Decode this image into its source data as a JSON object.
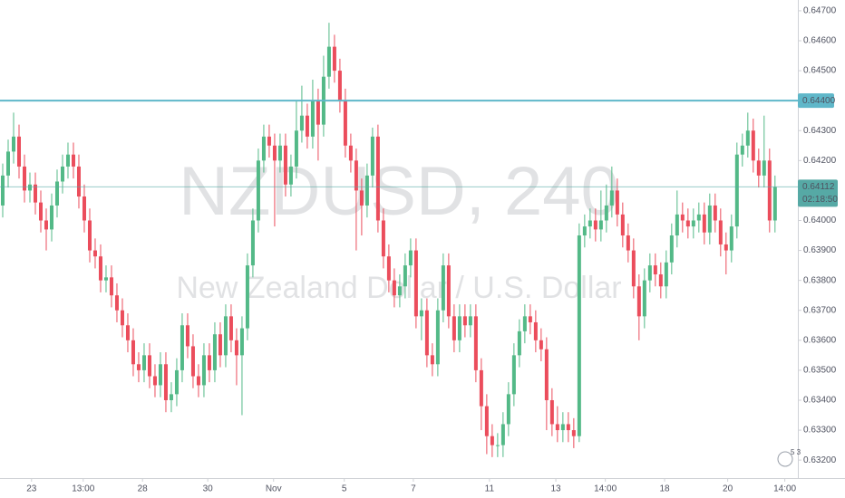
{
  "chart_data": {
    "type": "candlestick",
    "watermark_symbol": "NZDUSD, 240",
    "watermark_name": "New Zealand Dollar / U.S. Dollar",
    "up_color": "#53b987",
    "down_color": "#eb4d5c",
    "grid": false,
    "open": [
      0.6405,
      0.6415,
      0.6423,
      0.6428,
      0.6418,
      0.641,
      0.6412,
      0.6406,
      0.64,
      0.6397,
      0.6405,
      0.6413,
      0.6418,
      0.6422,
      0.6418,
      0.6408,
      0.64,
      0.639,
      0.6388,
      0.638,
      0.6381,
      0.6375,
      0.637,
      0.6365,
      0.636,
      0.6352,
      0.635,
      0.6355,
      0.6348,
      0.6345,
      0.6352,
      0.634,
      0.6342,
      0.635,
      0.6365,
      0.6358,
      0.6348,
      0.6345,
      0.6355,
      0.635,
      0.6362,
      0.6355,
      0.6368,
      0.636,
      0.6355,
      0.6364,
      0.6385,
      0.64,
      0.642,
      0.6428,
      0.6425,
      0.642,
      0.6425,
      0.6412,
      0.6418,
      0.643,
      0.6435,
      0.6428,
      0.644,
      0.6432,
      0.6448,
      0.6458,
      0.645,
      0.644,
      0.6425,
      0.642,
      0.641,
      0.6405,
      0.6415,
      0.6428,
      0.64,
      0.6388,
      0.638,
      0.6375,
      0.6378,
      0.6385,
      0.639,
      0.6368,
      0.637,
      0.6355,
      0.6352,
      0.637,
      0.6385,
      0.6368,
      0.636,
      0.6368,
      0.6365,
      0.6368,
      0.635,
      0.6338,
      0.6328,
      0.6325,
      0.6325,
      0.6332,
      0.6342,
      0.6355,
      0.6363,
      0.6368,
      0.6366,
      0.636,
      0.6357,
      0.634,
      0.6332,
      0.633,
      0.6332,
      0.633,
      0.6328,
      0.6395,
      0.6398,
      0.64,
      0.6397,
      0.64,
      0.6405,
      0.641,
      0.6402,
      0.6395,
      0.639,
      0.6378,
      0.6368,
      0.638,
      0.6385,
      0.6382,
      0.6378,
      0.6386,
      0.6395,
      0.6402,
      0.64,
      0.6398,
      0.64,
      0.6402,
      0.6396,
      0.6405,
      0.64,
      0.6392,
      0.639,
      0.6398,
      0.6422,
      0.6425,
      0.643,
      0.642,
      0.6415,
      0.642,
      0.64
    ],
    "high": [
      0.6419,
      0.6427,
      0.6436,
      0.6432,
      0.6422,
      0.6416,
      0.6416,
      0.641,
      0.6404,
      0.6409,
      0.6417,
      0.6422,
      0.6426,
      0.6426,
      0.6422,
      0.6412,
      0.6404,
      0.6394,
      0.6392,
      0.6385,
      0.6385,
      0.6379,
      0.6374,
      0.6369,
      0.6364,
      0.6356,
      0.6359,
      0.6359,
      0.6352,
      0.6356,
      0.6356,
      0.6346,
      0.6354,
      0.6369,
      0.6369,
      0.6362,
      0.6352,
      0.6359,
      0.6359,
      0.6366,
      0.6366,
      0.6372,
      0.6372,
      0.6364,
      0.6368,
      0.6389,
      0.6404,
      0.6424,
      0.6432,
      0.6432,
      0.6429,
      0.6429,
      0.6429,
      0.6422,
      0.644,
      0.6445,
      0.6439,
      0.6447,
      0.6444,
      0.6455,
      0.6466,
      0.6462,
      0.6454,
      0.6444,
      0.6429,
      0.6424,
      0.6414,
      0.6419,
      0.6431,
      0.6432,
      0.6404,
      0.6392,
      0.6384,
      0.6382,
      0.6389,
      0.6394,
      0.6394,
      0.6374,
      0.6374,
      0.6359,
      0.6374,
      0.6389,
      0.6389,
      0.6372,
      0.6372,
      0.6372,
      0.6372,
      0.6372,
      0.6354,
      0.6342,
      0.6332,
      0.6329,
      0.6336,
      0.6346,
      0.6359,
      0.6367,
      0.6372,
      0.6372,
      0.637,
      0.6364,
      0.6361,
      0.6344,
      0.6338,
      0.6336,
      0.6336,
      0.6334,
      0.6399,
      0.6402,
      0.6404,
      0.6404,
      0.641,
      0.6412,
      0.6418,
      0.6414,
      0.6406,
      0.6399,
      0.6394,
      0.6382,
      0.6384,
      0.6389,
      0.6389,
      0.6386,
      0.639,
      0.6399,
      0.641,
      0.6406,
      0.6404,
      0.6404,
      0.6406,
      0.6406,
      0.6409,
      0.6409,
      0.6404,
      0.6396,
      0.6402,
      0.6426,
      0.6429,
      0.6436,
      0.6434,
      0.6424,
      0.6435,
      0.6424,
      0.6415
    ],
    "low": [
      0.6401,
      0.6411,
      0.6419,
      0.6414,
      0.6406,
      0.6406,
      0.6402,
      0.6396,
      0.639,
      0.6393,
      0.6401,
      0.6409,
      0.6414,
      0.6414,
      0.6404,
      0.6396,
      0.6386,
      0.6384,
      0.6376,
      0.6376,
      0.6371,
      0.6366,
      0.6361,
      0.6356,
      0.6348,
      0.6346,
      0.6346,
      0.6344,
      0.6341,
      0.6341,
      0.6336,
      0.6336,
      0.6338,
      0.6346,
      0.6354,
      0.6344,
      0.6341,
      0.6341,
      0.6346,
      0.6346,
      0.6351,
      0.6351,
      0.6356,
      0.6345,
      0.6335,
      0.636,
      0.6381,
      0.6396,
      0.6416,
      0.6421,
      0.6398,
      0.6416,
      0.6408,
      0.6408,
      0.6414,
      0.6426,
      0.6424,
      0.6424,
      0.642,
      0.6428,
      0.6444,
      0.6446,
      0.6436,
      0.6421,
      0.6416,
      0.639,
      0.6395,
      0.6401,
      0.6411,
      0.6396,
      0.6384,
      0.6376,
      0.6371,
      0.6371,
      0.6374,
      0.6381,
      0.6364,
      0.636,
      0.6351,
      0.6348,
      0.6348,
      0.6366,
      0.6364,
      0.6356,
      0.6356,
      0.6361,
      0.6361,
      0.6346,
      0.633,
      0.6322,
      0.6321,
      0.6321,
      0.6321,
      0.6328,
      0.6338,
      0.6351,
      0.6359,
      0.6362,
      0.6356,
      0.6353,
      0.633,
      0.6328,
      0.6326,
      0.6326,
      0.6326,
      0.6324,
      0.6326,
      0.6391,
      0.6394,
      0.6393,
      0.6393,
      0.6396,
      0.6401,
      0.6398,
      0.6391,
      0.6386,
      0.6374,
      0.636,
      0.6364,
      0.6376,
      0.6378,
      0.6374,
      0.6374,
      0.6382,
      0.6391,
      0.6396,
      0.6394,
      0.6394,
      0.6396,
      0.6392,
      0.6392,
      0.6396,
      0.6388,
      0.6382,
      0.6386,
      0.6394,
      0.6418,
      0.6421,
      0.6416,
      0.6411,
      0.6411,
      0.6396,
      0.6396
    ],
    "close": [
      0.6415,
      0.6423,
      0.6428,
      0.6418,
      0.641,
      0.6412,
      0.6406,
      0.64,
      0.6397,
      0.6405,
      0.6413,
      0.6418,
      0.6422,
      0.6418,
      0.6408,
      0.64,
      0.639,
      0.6388,
      0.638,
      0.6381,
      0.6375,
      0.637,
      0.6365,
      0.636,
      0.6352,
      0.635,
      0.6355,
      0.6348,
      0.6345,
      0.6352,
      0.634,
      0.6342,
      0.635,
      0.6365,
      0.6358,
      0.6348,
      0.6345,
      0.6355,
      0.635,
      0.6362,
      0.6355,
      0.6368,
      0.636,
      0.6355,
      0.6364,
      0.6385,
      0.64,
      0.642,
      0.6428,
      0.6425,
      0.642,
      0.6425,
      0.6412,
      0.6418,
      0.643,
      0.6435,
      0.6428,
      0.644,
      0.6432,
      0.6448,
      0.6458,
      0.645,
      0.644,
      0.6425,
      0.642,
      0.641,
      0.6405,
      0.6415,
      0.6428,
      0.64,
      0.6388,
      0.638,
      0.6375,
      0.6378,
      0.6385,
      0.639,
      0.6368,
      0.637,
      0.6355,
      0.6352,
      0.637,
      0.6385,
      0.6368,
      0.636,
      0.6368,
      0.6365,
      0.6368,
      0.635,
      0.6338,
      0.6328,
      0.6325,
      0.6325,
      0.6332,
      0.6342,
      0.6355,
      0.6363,
      0.6368,
      0.6366,
      0.636,
      0.6357,
      0.634,
      0.6332,
      0.633,
      0.6332,
      0.633,
      0.6328,
      0.6395,
      0.6398,
      0.64,
      0.6397,
      0.64,
      0.6405,
      0.641,
      0.6402,
      0.6395,
      0.639,
      0.6378,
      0.6368,
      0.638,
      0.6385,
      0.6382,
      0.6378,
      0.6386,
      0.6395,
      0.6402,
      0.64,
      0.6398,
      0.64,
      0.6402,
      0.6396,
      0.6405,
      0.64,
      0.6392,
      0.639,
      0.6398,
      0.6422,
      0.6425,
      0.643,
      0.642,
      0.6415,
      0.642,
      0.64,
      0.64112
    ],
    "xlim": [
      -0.5,
      146.2
    ],
    "xticks": [
      {
        "value": 5.3,
        "label": "23"
      },
      {
        "value": 14.8,
        "label": "13:00"
      },
      {
        "value": 25.7,
        "label": "28"
      },
      {
        "value": 37.7,
        "label": "30"
      },
      {
        "value": 49.8,
        "label": "Nov"
      },
      {
        "value": 62.8,
        "label": "5"
      },
      {
        "value": 75.5,
        "label": "7"
      },
      {
        "value": 89.5,
        "label": "11"
      },
      {
        "value": 101.7,
        "label": "13"
      },
      {
        "value": 110.8,
        "label": "14:00"
      },
      {
        "value": 121.7,
        "label": "18"
      },
      {
        "value": 133.3,
        "label": "20"
      },
      {
        "value": 143.8,
        "label": "14:00"
      }
    ],
    "ylim": [
      0.6314,
      0.64736
    ],
    "yticks": [
      {
        "value": 0.647,
        "label": "0.64700"
      },
      {
        "value": 0.646,
        "label": "0.64600"
      },
      {
        "value": 0.645,
        "label": "0.64500"
      },
      {
        "value": 0.643,
        "label": "0.64300"
      },
      {
        "value": 0.642,
        "label": "0.64200"
      },
      {
        "value": 0.64,
        "label": "0.64000"
      },
      {
        "value": 0.639,
        "label": "0.63900"
      },
      {
        "value": 0.638,
        "label": "0.63800"
      },
      {
        "value": 0.637,
        "label": "0.63700"
      },
      {
        "value": 0.636,
        "label": "0.63600"
      },
      {
        "value": 0.635,
        "label": "0.63500"
      },
      {
        "value": 0.634,
        "label": "0.63400"
      },
      {
        "value": 0.633,
        "label": "0.63300"
      },
      {
        "value": 0.632,
        "label": "0.63200"
      }
    ],
    "horizontal_line": {
      "value": 0.644,
      "label": "0.64400",
      "color": "#5fb7c9"
    },
    "last_price": {
      "value": 0.64112,
      "label": "0.64112",
      "countdown": "02:18:50",
      "color": "#56a9a5"
    },
    "badge": "5 3"
  }
}
